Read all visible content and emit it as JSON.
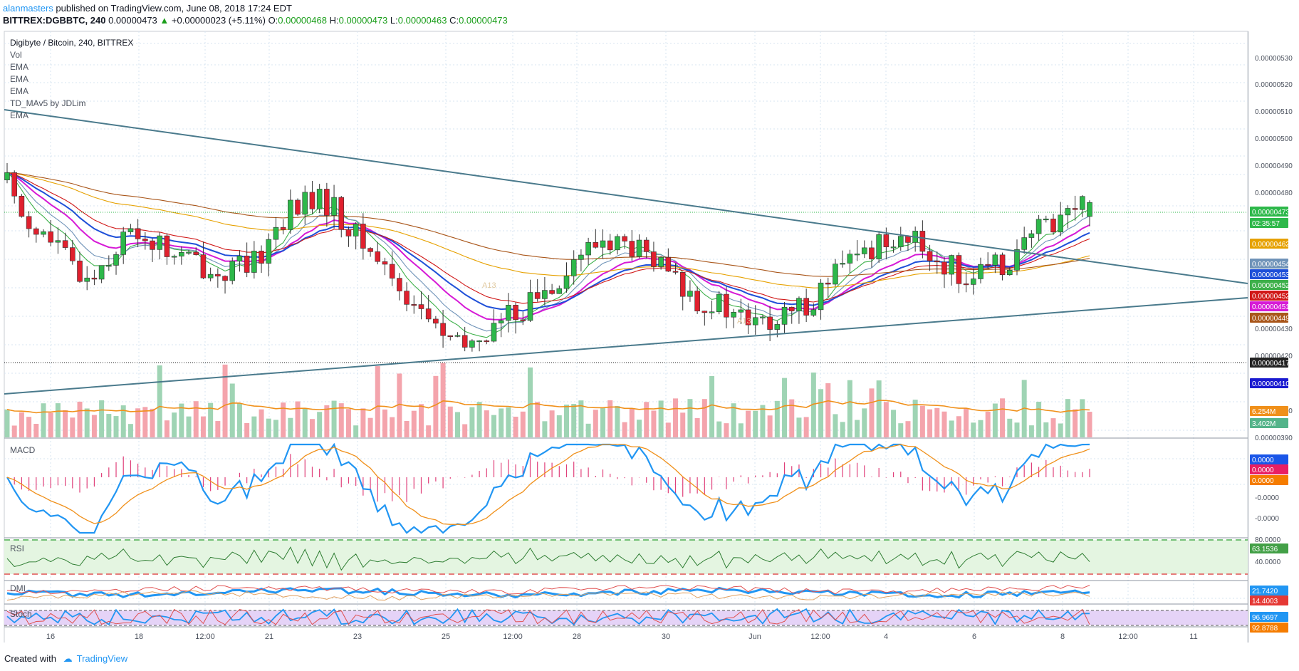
{
  "header": {
    "author": "alanmasters",
    "published_text": " published on TradingView.com, June 08, 2018 17:24 EDT",
    "symbol_line": "BITTREX:DGBBTC, 240",
    "last": "0.00000473",
    "change": "+0.00000023 (+5.11%)",
    "o_label": "O:",
    "o": "0.00000468",
    "h_label": "H:",
    "h": "0.00000473",
    "l_label": "L:",
    "l": "0.00000463",
    "c_label": "C:",
    "c": "0.00000473"
  },
  "legend": {
    "title": "Digibyte / Bitcoin, 240, BITTREX",
    "studies": [
      "Vol",
      "EMA",
      "EMA",
      "EMA",
      "TD_MAv5 by JDLim",
      "EMA"
    ]
  },
  "footer": {
    "created_with": "Created with",
    "brand": "TradingView"
  },
  "colors": {
    "up": "#2db84a",
    "down": "#e0202e",
    "vol_up": "#9fd4b4",
    "vol_down": "#f4a4ac",
    "trend": "#4a7a8c"
  },
  "chart_data": [
    {
      "type": "candlestick",
      "title": "Digibyte / Bitcoin, 240, BITTREX",
      "y_ticks": [
        "0.00000530",
        "0.00000520",
        "0.00000510",
        "0.00000500",
        "0.00000490",
        "0.00000480",
        "0.00000430",
        "0.00000420",
        "0.00000400",
        "0.00000390"
      ],
      "ylim": [
        3.89e-06,
        5.34e-06
      ],
      "x_ticks": [
        "16",
        "18",
        "12:00",
        "21",
        "23",
        "25",
        "12:00",
        "28",
        "30",
        "Jun",
        "12:00",
        "4",
        "6",
        "8",
        "12:00",
        "11"
      ],
      "close_path": [
        481,
        469,
        462,
        458,
        450,
        446,
        452,
        459,
        463,
        459,
        455,
        453,
        451,
        447,
        450,
        448,
        458,
        467,
        472,
        474,
        472,
        465,
        458,
        453,
        445,
        438,
        432,
        426,
        420,
        424,
        428,
        432,
        436,
        440,
        446,
        452,
        456,
        460,
        458,
        456,
        451,
        447,
        441,
        438,
        436,
        433,
        430,
        429,
        431,
        435,
        440,
        446,
        451,
        455,
        459,
        462,
        459,
        455,
        451,
        448,
        446,
        449,
        453,
        458,
        464,
        468,
        471,
        473
      ],
      "price_labels": [
        {
          "value": "0.00000473",
          "color": "#2db84a"
        },
        {
          "value": "02:35:57",
          "color": "#2db84a"
        },
        {
          "value": "0.00000462",
          "color": "#e6a100"
        },
        {
          "value": "0.00000454",
          "color": "#6f93b8"
        },
        {
          "value": "0.00000453",
          "color": "#1e4fd8"
        },
        {
          "value": "0.00000452",
          "color": "#3db04a"
        },
        {
          "value": "0.00000452",
          "color": "#d01818"
        },
        {
          "value": "0.00000451",
          "color": "#d61ad6"
        },
        {
          "value": "0.00000449",
          "color": "#a9561a"
        },
        {
          "value": "0.00000417",
          "color": "#222222"
        },
        {
          "value": "0.00000410",
          "color": "#1a1ad0"
        },
        {
          "value": "6.254M",
          "color": "#f0901a"
        },
        {
          "value": "3.402M",
          "color": "#54b48a"
        }
      ],
      "pattern_labels": [
        "A13",
        "A13"
      ]
    },
    {
      "type": "line",
      "title": "MACD",
      "y_ticks": [
        "-0.0000",
        "-0.0000"
      ],
      "values": [
        "0.0000",
        "0.0000",
        "0.0000"
      ]
    },
    {
      "type": "line",
      "title": "RSI",
      "y_ticks": [
        "80.0000",
        "40.0000"
      ],
      "values": [
        "63.1536"
      ]
    },
    {
      "type": "line",
      "title": "DMI",
      "values": [
        "21.7420",
        "14.4003"
      ]
    },
    {
      "type": "line",
      "title": "Stoch",
      "values": [
        "96.9697",
        "92.8788"
      ]
    }
  ]
}
